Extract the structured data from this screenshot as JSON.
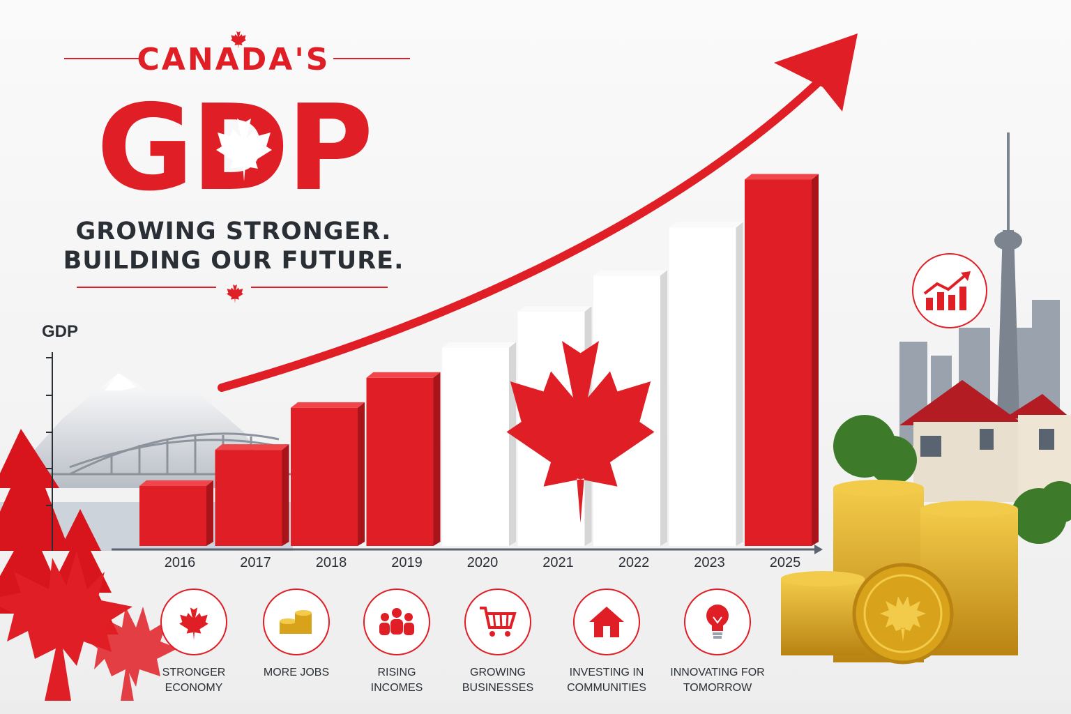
{
  "header": {
    "kicker": "CANADA'S",
    "title": "GDP",
    "tagline_line1": "GROWING STRONGER.",
    "tagline_line2": "BUILDING OUR FUTURE."
  },
  "chart_data": {
    "type": "bar",
    "ylabel": "GDP",
    "categories": [
      "2016",
      "2017",
      "2018",
      "2019",
      "2020",
      "2021",
      "2022",
      "2023",
      "2025"
    ],
    "values": [
      1,
      1.6,
      2.3,
      2.8,
      3.3,
      3.9,
      4.5,
      5.3,
      6.1
    ],
    "ylim": [
      0,
      7
    ],
    "trend": "rising arrow",
    "colors": [
      "#e01e25",
      "#e01e25",
      "#e01e25",
      "#e01e25",
      "#ffffff",
      "#ffffff",
      "#ffffff",
      "#ffffff",
      "#e01e25"
    ]
  },
  "benefits": [
    {
      "icon": "maple-leaf-icon",
      "label_line1": "STRONGER",
      "label_line2": "ECONOMY"
    },
    {
      "icon": "coins-icon",
      "label_line1": "MORE JOBS",
      "label_line2": ""
    },
    {
      "icon": "people-icon",
      "label_line1": "RISING",
      "label_line2": "INCOMES"
    },
    {
      "icon": "shopping-cart-icon",
      "label_line1": "GROWING",
      "label_line2": "BUSINESSES"
    },
    {
      "icon": "house-icon",
      "label_line1": "INVESTING IN",
      "label_line2": "COMMUNITIES"
    },
    {
      "icon": "lightbulb-icon",
      "label_line1": "INNOVATING FOR",
      "label_line2": "TOMORROW"
    }
  ],
  "colors": {
    "accent": "#e01e25",
    "text": "#2a2f36",
    "gold": "#d9a21b"
  }
}
